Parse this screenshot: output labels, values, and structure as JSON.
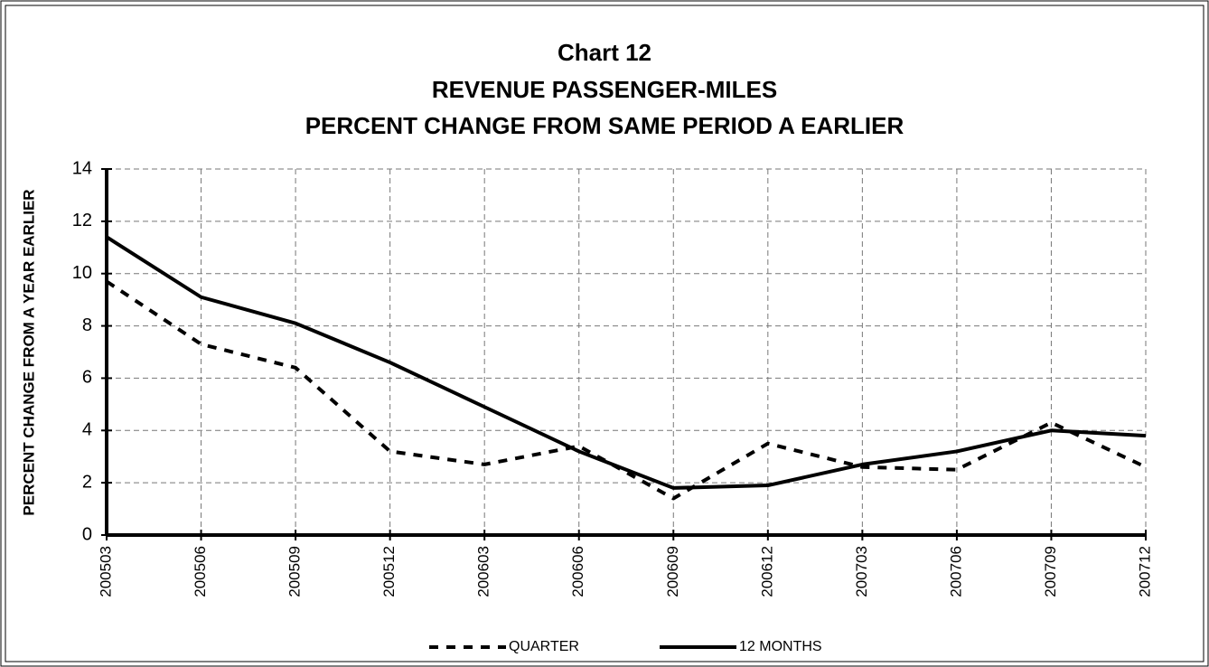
{
  "chart_data": {
    "type": "line",
    "title": [
      "Chart 12",
      "REVENUE PASSENGER-MILES",
      "PERCENT CHANGE FROM SAME PERIOD A EARLIER"
    ],
    "y_label": "PERCENT CHANGE FROM A YEAR EARLIER",
    "categories": [
      "200503",
      "200506",
      "200509",
      "200512",
      "200603",
      "200606",
      "200609",
      "200612",
      "200703",
      "200706",
      "200709",
      "200712"
    ],
    "series": [
      {
        "name": "QUARTER",
        "color": "#000000",
        "dash": "dashed",
        "values": [
          9.7,
          7.3,
          6.4,
          3.2,
          2.7,
          3.4,
          1.4,
          3.5,
          2.6,
          2.5,
          4.3,
          2.6
        ]
      },
      {
        "name": "12 MONTHS",
        "color": "#000000",
        "dash": "solid",
        "values": [
          11.4,
          9.1,
          8.1,
          6.6,
          4.9,
          3.2,
          1.8,
          1.9,
          2.7,
          3.2,
          4.0,
          3.8
        ]
      }
    ],
    "ylim": [
      0,
      14
    ],
    "yticks": [
      0,
      2,
      4,
      6,
      8,
      10,
      12,
      14
    ],
    "grid": true,
    "legend": "bottom"
  }
}
